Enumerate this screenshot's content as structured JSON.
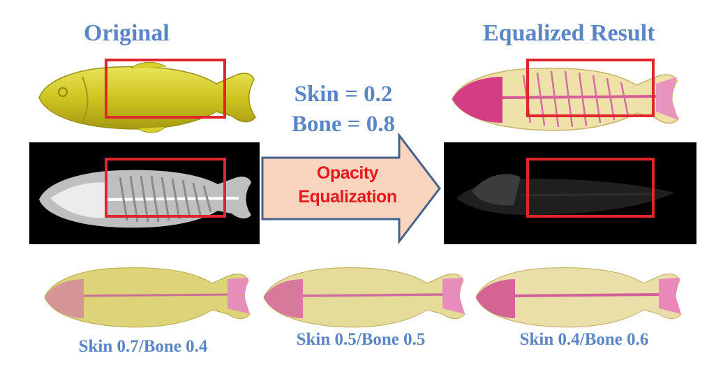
{
  "headings": {
    "original": "Original",
    "result": "Equalized Result"
  },
  "parameters": {
    "skin": "Skin = 0.2",
    "bone": "Bone = 0.8"
  },
  "arrow": {
    "line1": "Opacity",
    "line2": "Equalization"
  },
  "captions": [
    "Skin 0.7/Bone 0.4",
    "Skin 0.5/Bone 0.5",
    "Skin 0.4/Bone 0.6"
  ],
  "colors": {
    "heading_blue": "#5b86c6",
    "highlight_red": "#e0262c",
    "arrow_fill": "#f9d4bf",
    "arrow_stroke": "#44628c",
    "arrow_text": "#e8181c"
  }
}
